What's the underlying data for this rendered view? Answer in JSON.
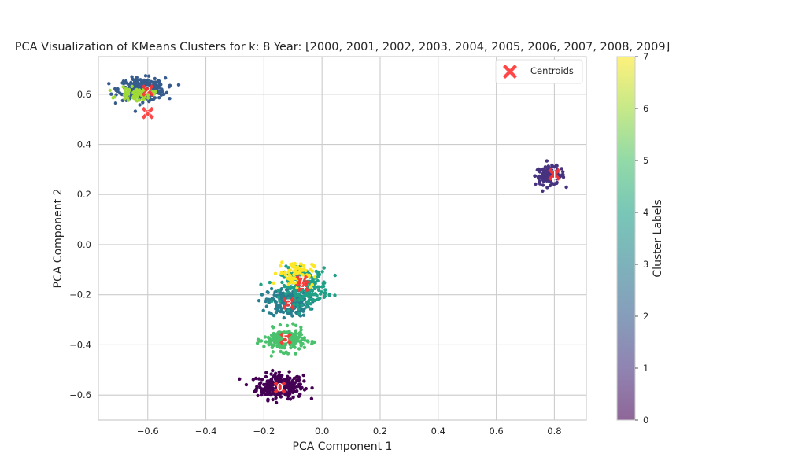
{
  "chart_data": {
    "type": "scatter",
    "title": "PCA Visualization of KMeans Clusters for k: 8 Year: [2000, 2001, 2002, 2003, 2004, 2005, 2006, 2007, 2008, 2009]",
    "xlabel": "PCA Component 1",
    "ylabel": "PCA Component 2",
    "xlim": [
      -0.77,
      0.91
    ],
    "ylim": [
      -0.7,
      0.75
    ],
    "xticks": [
      -0.6,
      -0.4,
      -0.2,
      0.0,
      0.2,
      0.4,
      0.6,
      0.8
    ],
    "xticklabels": [
      "−0.6",
      "−0.4",
      "−0.2",
      "0.0",
      "0.2",
      "0.4",
      "0.6",
      "0.8"
    ],
    "yticks": [
      -0.6,
      -0.4,
      -0.2,
      0.0,
      0.2,
      0.4,
      0.6
    ],
    "yticklabels": [
      "−0.6",
      "−0.4",
      "−0.2",
      "0.0",
      "0.2",
      "0.4",
      "0.6"
    ],
    "grid": true,
    "colormap": "viridis",
    "colorbar": {
      "label": "Cluster Labels",
      "range": [
        0,
        7
      ],
      "ticks": [
        "0",
        "1",
        "2",
        "3",
        "4",
        "5",
        "6",
        "7"
      ],
      "colors": [
        "#440154",
        "#46327e",
        "#365c8d",
        "#277f8e",
        "#1fa187",
        "#4ac16d",
        "#a0da39",
        "#fde725"
      ]
    },
    "legend": {
      "position": "top-right",
      "entries": [
        "Centroids"
      ]
    },
    "centroid_color": "#ff3333",
    "clusters": [
      {
        "label": "0",
        "center": [
          -0.145,
          -0.565
        ],
        "spread": [
          0.04,
          0.025
        ],
        "n": 260
      },
      {
        "label": "1",
        "center": [
          0.785,
          0.275
        ],
        "spread": [
          0.025,
          0.018
        ],
        "n": 130
      },
      {
        "label": "2",
        "center": [
          -0.62,
          0.62
        ],
        "spread": [
          0.04,
          0.022
        ],
        "n": 280
      },
      {
        "label": "3",
        "center": [
          -0.115,
          -0.23
        ],
        "spread": [
          0.035,
          0.028
        ],
        "n": 240
      },
      {
        "label": "4",
        "center": [
          -0.06,
          -0.165
        ],
        "spread": [
          0.04,
          0.035
        ],
        "n": 220
      },
      {
        "label": "5",
        "center": [
          -0.13,
          -0.38
        ],
        "spread": [
          0.035,
          0.022
        ],
        "n": 230
      },
      {
        "label": "6",
        "center": [
          -0.64,
          0.6
        ],
        "spread": [
          0.03,
          0.012
        ],
        "n": 60
      },
      {
        "label": "7",
        "center": [
          -0.09,
          -0.115
        ],
        "spread": [
          0.03,
          0.025
        ],
        "n": 80
      }
    ],
    "centroids": [
      {
        "label": "0",
        "x": -0.145,
        "y": -0.57
      },
      {
        "label": "1",
        "x": 0.8,
        "y": 0.28
      },
      {
        "label": "2",
        "x": -0.6,
        "y": 0.615
      },
      {
        "label": "3",
        "x": -0.115,
        "y": -0.235
      },
      {
        "label": "4",
        "x": -0.065,
        "y": -0.165
      },
      {
        "label": "5",
        "x": -0.125,
        "y": -0.375
      },
      {
        "label": "6",
        "x": -0.6,
        "y": 0.525
      },
      {
        "label": "7",
        "x": -0.07,
        "y": -0.145
      }
    ]
  }
}
